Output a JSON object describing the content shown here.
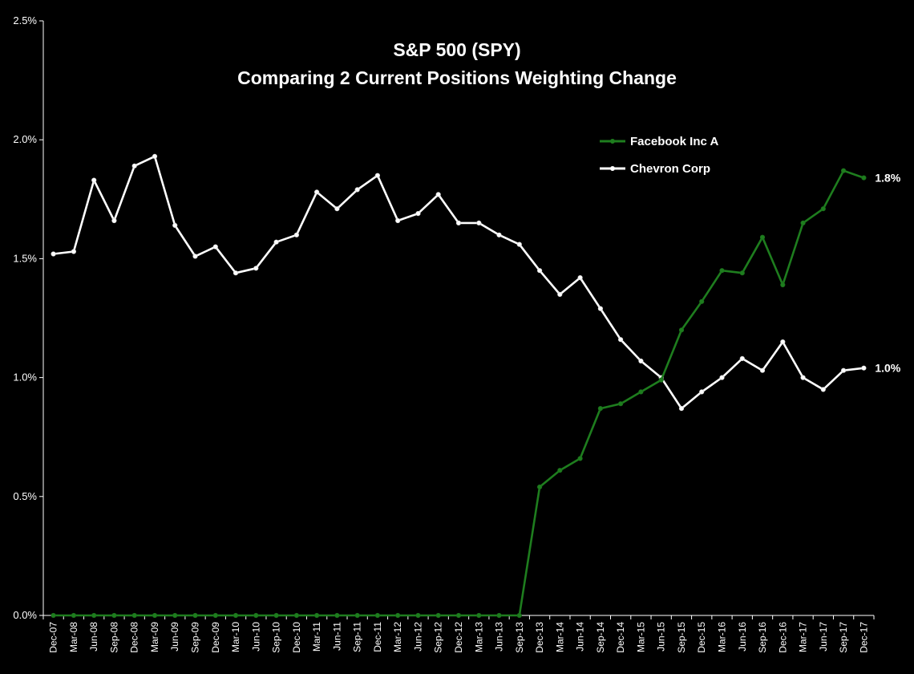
{
  "chart_data": {
    "type": "line",
    "title": "S&P 500 (SPY)",
    "subtitle": "Comparing 2 Current Positions Weighting Change",
    "categories": [
      "Dec-07",
      "Mar-08",
      "Jun-08",
      "Sep-08",
      "Dec-08",
      "Mar-09",
      "Jun-09",
      "Sep-09",
      "Dec-09",
      "Mar-10",
      "Jun-10",
      "Sep-10",
      "Dec-10",
      "Mar-11",
      "Jun-11",
      "Sep-11",
      "Dec-11",
      "Mar-12",
      "Jun-12",
      "Sep-12",
      "Dec-12",
      "Mar-13",
      "Jun-13",
      "Sep-13",
      "Dec-13",
      "Mar-14",
      "Jun-14",
      "Sep-14",
      "Dec-14",
      "Mar-15",
      "Jun-15",
      "Sep-15",
      "Dec-15",
      "Mar-16",
      "Jun-16",
      "Sep-16",
      "Dec-16",
      "Mar-17",
      "Jun-17",
      "Sep-17",
      "Dec-17"
    ],
    "ylim": [
      0,
      2.5
    ],
    "yticks": [
      "0.0%",
      "0.5%",
      "1.0%",
      "1.5%",
      "2.0%",
      "2.5%"
    ],
    "y_unit": "%",
    "grid": false,
    "legend_position": "top-right",
    "series": [
      {
        "name": "Facebook Inc A",
        "color": "#1e7d1e",
        "end_label": "1.8%",
        "values": [
          0,
          0,
          0,
          0,
          0,
          0,
          0,
          0,
          0,
          0,
          0,
          0,
          0,
          0,
          0,
          0,
          0,
          0,
          0,
          0,
          0,
          0,
          0,
          0,
          0.54,
          0.61,
          0.66,
          0.87,
          0.89,
          0.94,
          0.99,
          1.2,
          1.32,
          1.45,
          1.44,
          1.59,
          1.39,
          1.65,
          1.71,
          1.87,
          1.84
        ]
      },
      {
        "name": "Chevron Corp",
        "color": "#ffffff",
        "end_label": "1.0%",
        "values": [
          1.52,
          1.53,
          1.83,
          1.66,
          1.89,
          1.93,
          1.64,
          1.51,
          1.55,
          1.44,
          1.46,
          1.57,
          1.6,
          1.78,
          1.71,
          1.79,
          1.85,
          1.66,
          1.69,
          1.77,
          1.65,
          1.65,
          1.6,
          1.56,
          1.45,
          1.35,
          1.42,
          1.29,
          1.16,
          1.07,
          1.0,
          0.87,
          0.94,
          1.0,
          1.08,
          1.03,
          1.15,
          1.0,
          0.95,
          1.03,
          1.04
        ]
      }
    ]
  }
}
